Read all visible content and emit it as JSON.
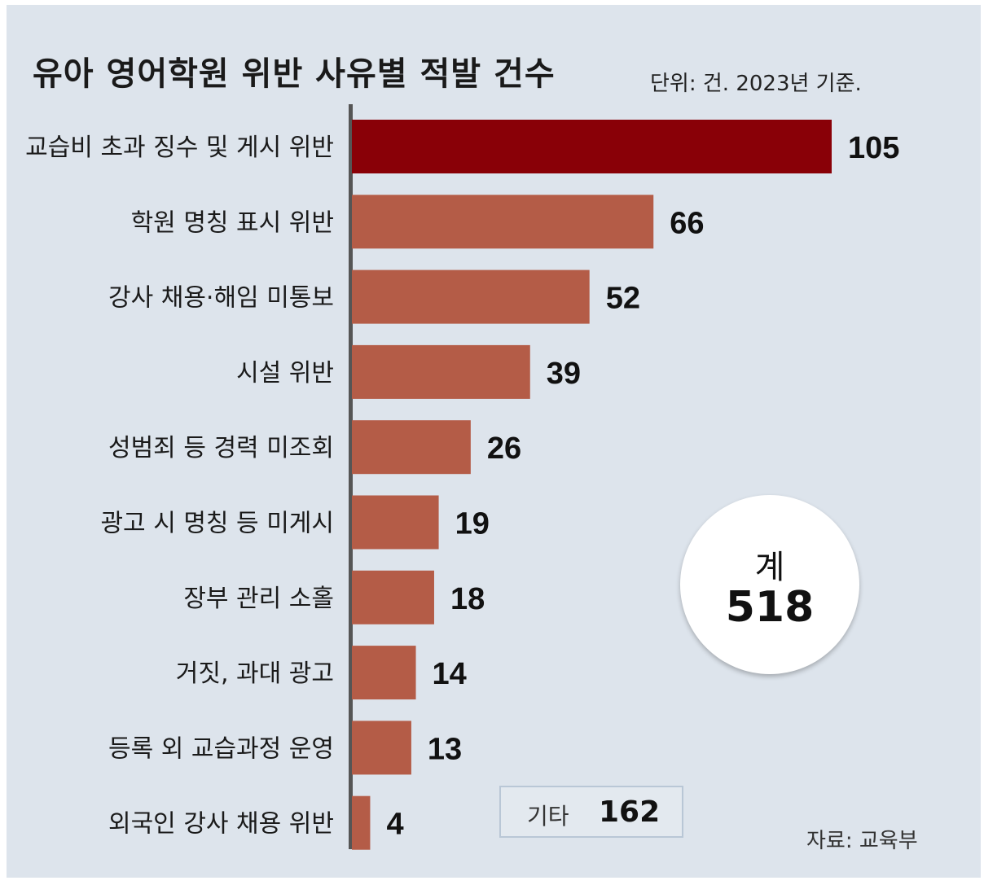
{
  "header": {
    "title": "유아 영어학원 위반 사유별 적발 건수",
    "unit": "단위: 건. 2023년 기준."
  },
  "total": {
    "label": "계",
    "value": "518"
  },
  "other": {
    "label": "기타",
    "value": "162"
  },
  "source": "자료: 교육부",
  "colors": {
    "highlight": "#890007",
    "bar": "#b45c47",
    "background": "#dde4ec",
    "axis": "#555555"
  },
  "chart_data": {
    "type": "bar",
    "orientation": "horizontal",
    "categories": [
      "교습비 초과 징수 및 게시 위반",
      "학원 명칭 표시 위반",
      "강사 채용·해임 미통보",
      "시설 위반",
      "성범죄 등 경력 미조회",
      "광고 시 명칭 등 미게시",
      "장부 관리 소홀",
      "거짓, 과대 광고",
      "등록 외  교습과정 운영",
      "외국인 강사 채용 위반"
    ],
    "values": [
      105,
      66,
      52,
      39,
      26,
      19,
      18,
      14,
      13,
      4
    ],
    "xlim": [
      0,
      105
    ],
    "grid": false,
    "legend": "none"
  }
}
